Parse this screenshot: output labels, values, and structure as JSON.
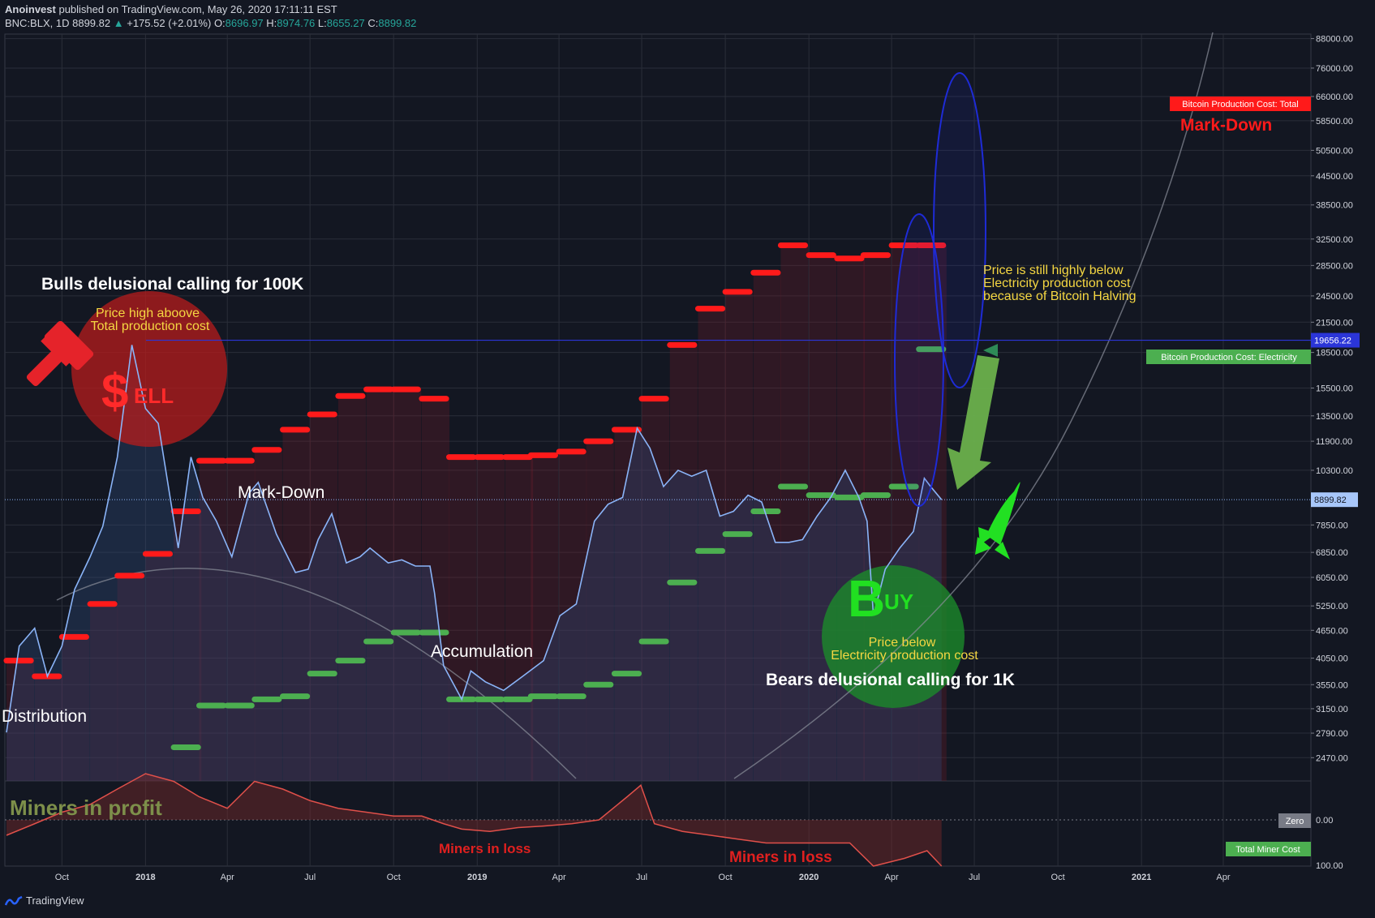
{
  "header": {
    "author": "Anoinvest",
    "published": "published on TradingView.com, May 26, 2020 17:11:11 EST",
    "symbol": "BNC:BLX, 1D",
    "last": "8899.82",
    "change": "+175.52 (+2.01%)",
    "o_label": "O:",
    "o": "8696.97",
    "h_label": "H:",
    "h": "8974.76",
    "l_label": "L:",
    "l": "8655.27",
    "c_label": "C:",
    "c": "8899.82"
  },
  "footer": {
    "brand": "TradingView"
  },
  "colors": {
    "background": "#131722",
    "price_line": "#8ab4f8",
    "total_cost": "#ff1a1a",
    "electricity_cost": "#4caf50",
    "sell_circle": "#b71c1c",
    "buy_circle": "#1b8a2b",
    "ellipse": "#1e2bd6",
    "annotation_yellow": "#f5d742"
  },
  "chart_data": {
    "type": "line",
    "title": "",
    "y_scale": "log",
    "x_tick_labels": [
      "Oct",
      "2018",
      "Apr",
      "Jul",
      "Oct",
      "2019",
      "Apr",
      "Jul",
      "Oct",
      "2020",
      "Apr",
      "Jul",
      "Oct",
      "2021",
      "Apr"
    ],
    "y_tick_labels": [
      "88000.00",
      "76000.00",
      "66000.00",
      "58500.00",
      "50500.00",
      "44500.00",
      "38500.00",
      "32500.00",
      "28500.00",
      "24500.00",
      "21500.00",
      "18500.00",
      "15500.00",
      "13500.00",
      "11900.00",
      "10300.00",
      "7850.00",
      "6850.00",
      "6050.00",
      "5250.00",
      "4650.00",
      "4050.00",
      "3550.00",
      "3150.00",
      "2790.00",
      "2470.00"
    ],
    "ylim": [
      2200,
      90000
    ],
    "price_label": "8899.82",
    "level_label": "19656.22",
    "series": [
      {
        "name": "BNC:BLX",
        "x": [
          "2017-08-01",
          "2017-08-15",
          "2017-09-01",
          "2017-09-15",
          "2017-10-01",
          "2017-10-15",
          "2017-11-01",
          "2017-11-15",
          "2017-12-01",
          "2017-12-17",
          "2018-01-01",
          "2018-01-15",
          "2018-02-06",
          "2018-02-20",
          "2018-03-05",
          "2018-03-20",
          "2018-04-06",
          "2018-04-25",
          "2018-05-05",
          "2018-05-25",
          "2018-06-15",
          "2018-06-29",
          "2018-07-10",
          "2018-07-25",
          "2018-08-10",
          "2018-08-25",
          "2018-09-05",
          "2018-09-25",
          "2018-10-10",
          "2018-10-25",
          "2018-11-10",
          "2018-11-15",
          "2018-11-25",
          "2018-12-15",
          "2018-12-25",
          "2019-01-10",
          "2019-01-30",
          "2019-02-20",
          "2019-03-15",
          "2019-04-02",
          "2019-04-20",
          "2019-05-10",
          "2019-05-25",
          "2019-06-10",
          "2019-06-26",
          "2019-07-10",
          "2019-07-25",
          "2019-08-10",
          "2019-08-25",
          "2019-09-10",
          "2019-09-25",
          "2019-10-10",
          "2019-10-26",
          "2019-11-10",
          "2019-11-25",
          "2019-12-10",
          "2019-12-25",
          "2020-01-10",
          "2020-01-25",
          "2020-02-10",
          "2020-02-25",
          "2020-03-05",
          "2020-03-12",
          "2020-03-25",
          "2020-04-10",
          "2020-04-25",
          "2020-05-07",
          "2020-05-14",
          "2020-05-26"
        ],
        "values": [
          2800,
          4300,
          4700,
          3700,
          4300,
          5700,
          6700,
          7800,
          11000,
          19200,
          14000,
          13000,
          7000,
          11000,
          9000,
          8000,
          6700,
          9200,
          9700,
          7500,
          6200,
          6300,
          7300,
          8300,
          6500,
          6700,
          7000,
          6500,
          6600,
          6400,
          6400,
          5600,
          3900,
          3300,
          3800,
          3600,
          3450,
          3700,
          4000,
          5000,
          5300,
          8000,
          8700,
          9000,
          12700,
          11500,
          9500,
          10300,
          10000,
          10300,
          8200,
          8400,
          9100,
          8800,
          7200,
          7200,
          7300,
          8200,
          9000,
          10300,
          9000,
          8000,
          5000,
          6300,
          7000,
          7600,
          9900,
          9500,
          8899.82
        ]
      },
      {
        "name": "Bitcoin Production Cost: Total",
        "x": [
          "2017-08-01",
          "2017-09-01",
          "2017-10-01",
          "2017-11-01",
          "2017-12-01",
          "2018-01-01",
          "2018-02-01",
          "2018-03-01",
          "2018-04-01",
          "2018-05-01",
          "2018-06-01",
          "2018-07-01",
          "2018-08-01",
          "2018-09-01",
          "2018-10-01",
          "2018-11-01",
          "2018-12-01",
          "2019-01-01",
          "2019-02-01",
          "2019-03-01",
          "2019-04-01",
          "2019-05-01",
          "2019-06-01",
          "2019-07-01",
          "2019-08-01",
          "2019-09-01",
          "2019-10-01",
          "2019-11-01",
          "2019-12-01",
          "2020-01-01",
          "2020-02-01",
          "2020-03-01",
          "2020-04-01",
          "2020-05-01"
        ],
        "values": [
          4000,
          3700,
          4500,
          5300,
          6100,
          6800,
          8400,
          10800,
          10800,
          11400,
          12600,
          13600,
          14900,
          15400,
          15400,
          14700,
          11000,
          11000,
          11000,
          11100,
          11300,
          11900,
          12600,
          14700,
          19200,
          23000,
          25000,
          27500,
          31500,
          30000,
          29500,
          30000,
          31500,
          31500
        ]
      },
      {
        "name": "Bitcoin Production Cost: Electricity",
        "x": [
          "2017-08-01",
          "2017-09-01",
          "2017-10-01",
          "2017-11-01",
          "2017-12-01",
          "2018-01-01",
          "2018-02-01",
          "2018-03-01",
          "2018-04-01",
          "2018-05-01",
          "2018-06-01",
          "2018-07-01",
          "2018-08-01",
          "2018-09-01",
          "2018-10-01",
          "2018-11-01",
          "2018-12-01",
          "2019-01-01",
          "2019-02-01",
          "2019-03-01",
          "2019-04-01",
          "2019-05-01",
          "2019-06-01",
          "2019-07-01",
          "2019-08-01",
          "2019-09-01",
          "2019-10-01",
          "2019-11-01",
          "2019-12-01",
          "2020-01-01",
          "2020-02-01",
          "2020-03-01",
          "2020-04-01",
          "2020-05-01"
        ],
        "values": [
          null,
          null,
          null,
          null,
          null,
          null,
          2600,
          3200,
          3200,
          3300,
          3350,
          3750,
          4000,
          4400,
          4600,
          4600,
          3300,
          3300,
          3300,
          3350,
          3350,
          3550,
          3750,
          4400,
          5900,
          6900,
          7500,
          8400,
          9500,
          9100,
          9000,
          9100,
          9500,
          18800
        ]
      },
      {
        "name": "Total Miner Cost",
        "x": [
          "2017-08-01",
          "2017-09-01",
          "2017-10-01",
          "2017-11-01",
          "2017-12-01",
          "2018-01-01",
          "2018-02-01",
          "2018-03-01",
          "2018-04-01",
          "2018-05-01",
          "2018-06-01",
          "2018-07-01",
          "2018-08-01",
          "2018-09-01",
          "2018-10-01",
          "2018-11-01",
          "2018-11-25",
          "2018-12-15",
          "2019-01-15",
          "2019-02-15",
          "2019-03-15",
          "2019-04-15",
          "2019-05-15",
          "2019-06-15",
          "2019-06-30",
          "2019-07-15",
          "2019-08-15",
          "2019-09-15",
          "2019-10-15",
          "2019-11-15",
          "2019-12-15",
          "2020-01-15",
          "2020-02-15",
          "2020-03-12",
          "2020-04-15",
          "2020-05-10",
          "2020-05-26"
        ],
        "values": [
          -20,
          -5,
          10,
          20,
          40,
          60,
          50,
          30,
          15,
          50,
          40,
          25,
          15,
          10,
          5,
          5,
          -5,
          -12,
          -15,
          -10,
          -8,
          -5,
          0,
          30,
          45,
          -5,
          -15,
          -20,
          -25,
          -30,
          -30,
          -30,
          -30,
          -60,
          -50,
          -40,
          -60
        ]
      }
    ],
    "legend_labels": [
      "Bitcoin Production Cost: Total",
      "Bitcoin Production Cost: Electricity",
      "Zero",
      "Total Miner Cost"
    ],
    "lower_pane": {
      "zero_label": "0.00",
      "bottom_label": "100.00"
    },
    "annotations": {
      "bulls": "Bulls delusional calling for 100K",
      "price_high_1": "Price high aboove",
      "price_high_2": "Total production cost",
      "sell_dollar": "$",
      "sell_text": "ELL",
      "markdown_1": "Mark-Down",
      "markdown_2": "Mark-Down",
      "distribution": "Distribution",
      "accumulation": "Accumulation",
      "still_1": "Price is still highly below",
      "still_2": "Electricity production cost",
      "still_3": "because of Bitcoin Halving",
      "buy_b": "B",
      "buy_text": "UY",
      "price_below_1": "Price below",
      "price_below_2": "Electricity production cost",
      "bears": "Bears delusional calling for 1K",
      "miners_profit": "Miners in profit",
      "miners_loss_1": "Miners in loss",
      "miners_loss_2": "Miners in loss"
    }
  }
}
